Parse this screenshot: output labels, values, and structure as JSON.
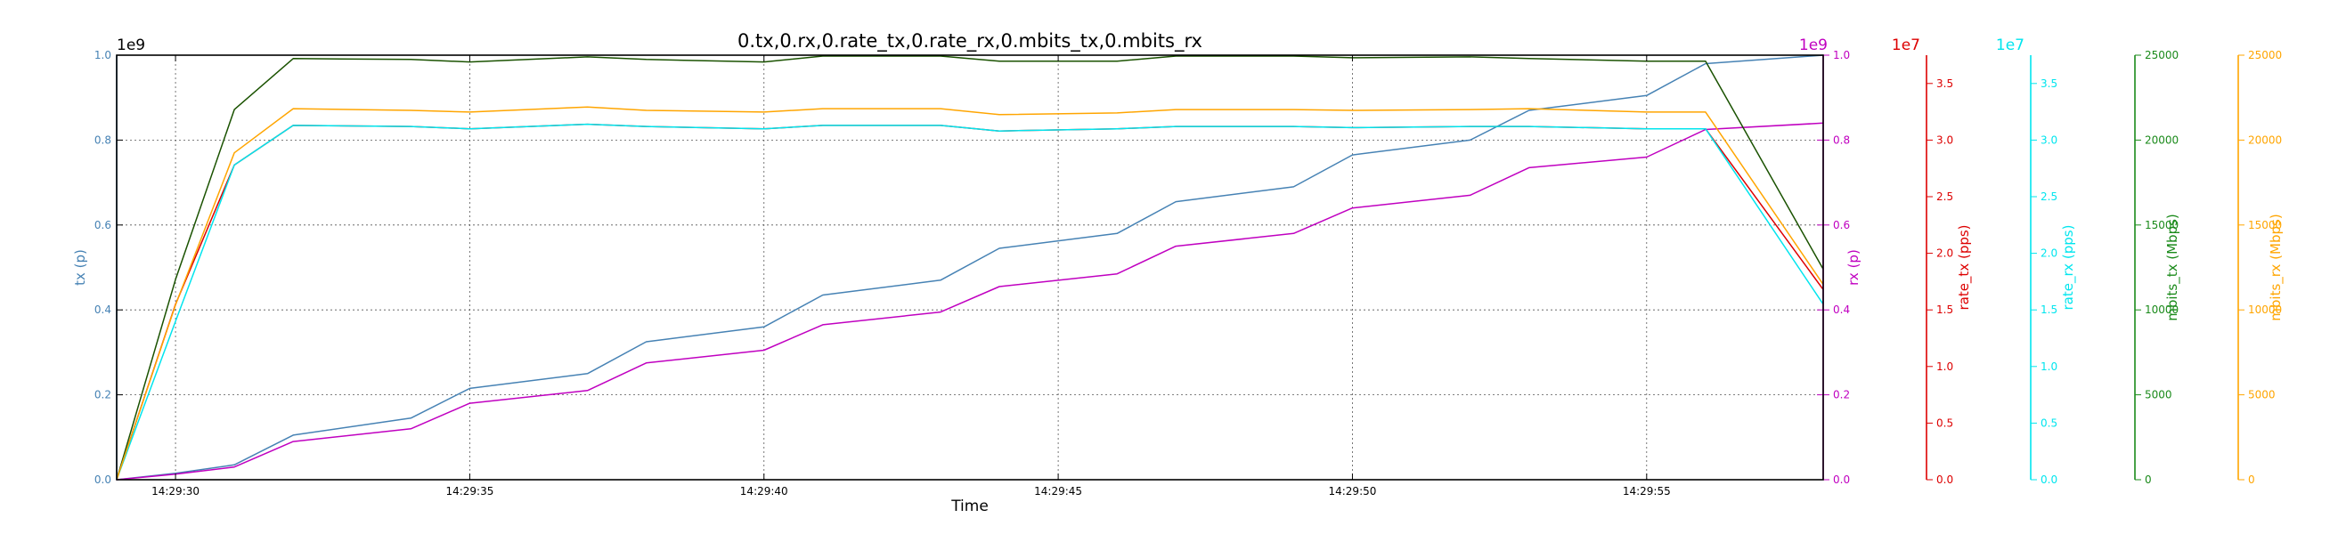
{
  "chart_data": {
    "type": "line",
    "title": "0.tx,0.rx,0.rate_tx,0.rate_rx,0.mbits_tx,0.mbits_rx",
    "xlabel": "Time",
    "x_ticks": [
      "14:29:30",
      "14:29:35",
      "14:29:40",
      "14:29:45",
      "14:29:50",
      "14:29:55"
    ],
    "x": [
      "14:29:29",
      "14:29:30",
      "14:29:31",
      "14:29:32",
      "14:29:34",
      "14:29:35",
      "14:29:37",
      "14:29:38",
      "14:29:40",
      "14:29:41",
      "14:29:43",
      "14:29:44",
      "14:29:46",
      "14:29:47",
      "14:29:49",
      "14:29:50",
      "14:29:52",
      "14:29:53",
      "14:29:55",
      "14:29:56",
      "14:29:58"
    ],
    "xlim": [
      "14:29:29",
      "14:29:58"
    ],
    "grid": true,
    "axes": [
      {
        "id": "tx",
        "label": "tx (p)",
        "side": "left",
        "color": "#4682b4",
        "exponent": "1e9",
        "ylim": [
          0,
          1.0
        ],
        "ticks": [
          "0.0",
          "0.2",
          "0.4",
          "0.6",
          "0.8",
          "1.0"
        ]
      },
      {
        "id": "rx",
        "label": "rx (p)",
        "side": "right",
        "color": "#c000c0",
        "exponent": "1e9",
        "ylim": [
          0,
          1.0
        ],
        "ticks": [
          "0.0",
          "0.2",
          "0.4",
          "0.6",
          "0.8",
          "1.0"
        ]
      },
      {
        "id": "rate_tx",
        "label": "rate_tx (pps)",
        "side": "right",
        "color": "#dd0000",
        "exponent": "1e7",
        "ylim": [
          0,
          3.75
        ],
        "ticks": [
          "0.0",
          "0.5",
          "1.0",
          "1.5",
          "2.0",
          "2.5",
          "3.0",
          "3.5"
        ]
      },
      {
        "id": "rate_rx",
        "label": "rate_rx (pps)",
        "side": "right",
        "color": "#00e5ee",
        "exponent": "1e7",
        "ylim": [
          0,
          3.75
        ],
        "ticks": [
          "0.0",
          "0.5",
          "1.0",
          "1.5",
          "2.0",
          "2.5",
          "3.0",
          "3.5"
        ]
      },
      {
        "id": "mbits_tx",
        "label": "mbits_tx (Mbps)",
        "side": "right",
        "color": "#1a8a1a",
        "exponent": "",
        "ylim": [
          0,
          25000
        ],
        "ticks": [
          "0",
          "5000",
          "10000",
          "15000",
          "20000",
          "25000"
        ]
      },
      {
        "id": "mbits_rx",
        "label": "mbits_rx (Mbps)",
        "side": "right",
        "color": "#ffa500",
        "exponent": "",
        "ylim": [
          0,
          25000
        ],
        "ticks": [
          "0",
          "5000",
          "10000",
          "15000",
          "20000",
          "25000"
        ]
      }
    ],
    "series": [
      {
        "name": "tx",
        "axis": "tx",
        "color": "#4682b4",
        "values": [
          0,
          0.015,
          0.035,
          0.105,
          0.145,
          0.215,
          0.25,
          0.325,
          0.36,
          0.435,
          0.47,
          0.545,
          0.58,
          0.655,
          0.69,
          0.765,
          0.8,
          0.87,
          0.905,
          0.98,
          1.0
        ]
      },
      {
        "name": "rx",
        "axis": "rx",
        "color": "#c000c0",
        "values": [
          0,
          0.013,
          0.03,
          0.09,
          0.12,
          0.18,
          0.21,
          0.275,
          0.305,
          0.365,
          0.395,
          0.455,
          0.485,
          0.55,
          0.58,
          0.64,
          0.67,
          0.735,
          0.76,
          0.825,
          0.84
        ]
      },
      {
        "name": "rate_tx",
        "axis": "rate_tx",
        "color": "#dd0000",
        "values": [
          0,
          1.55,
          2.78,
          3.13,
          3.12,
          3.1,
          3.14,
          3.12,
          3.1,
          3.13,
          3.13,
          3.08,
          3.1,
          3.12,
          3.12,
          3.11,
          3.12,
          3.12,
          3.1,
          3.1,
          1.68
        ]
      },
      {
        "name": "rate_rx",
        "axis": "rate_rx",
        "color": "#00e5ee",
        "values": [
          0,
          1.4,
          2.78,
          3.13,
          3.12,
          3.1,
          3.14,
          3.12,
          3.1,
          3.13,
          3.13,
          3.08,
          3.1,
          3.12,
          3.12,
          3.11,
          3.12,
          3.12,
          3.1,
          3.1,
          1.55
        ]
      },
      {
        "name": "mbits_tx",
        "axis": "mbits_tx",
        "color": "#1a5200",
        "values": [
          0,
          11800,
          21800,
          24800,
          24750,
          24600,
          24900,
          24750,
          24600,
          24950,
          24950,
          24650,
          24650,
          24950,
          24950,
          24850,
          24900,
          24800,
          24650,
          24650,
          12400
        ]
      },
      {
        "name": "mbits_rx",
        "axis": "mbits_rx",
        "color": "#ffa500",
        "values": [
          0,
          10300,
          19250,
          21850,
          21750,
          21650,
          21950,
          21750,
          21650,
          21850,
          21850,
          21500,
          21600,
          21800,
          21800,
          21750,
          21800,
          21850,
          21650,
          21650,
          11500
        ]
      }
    ]
  }
}
